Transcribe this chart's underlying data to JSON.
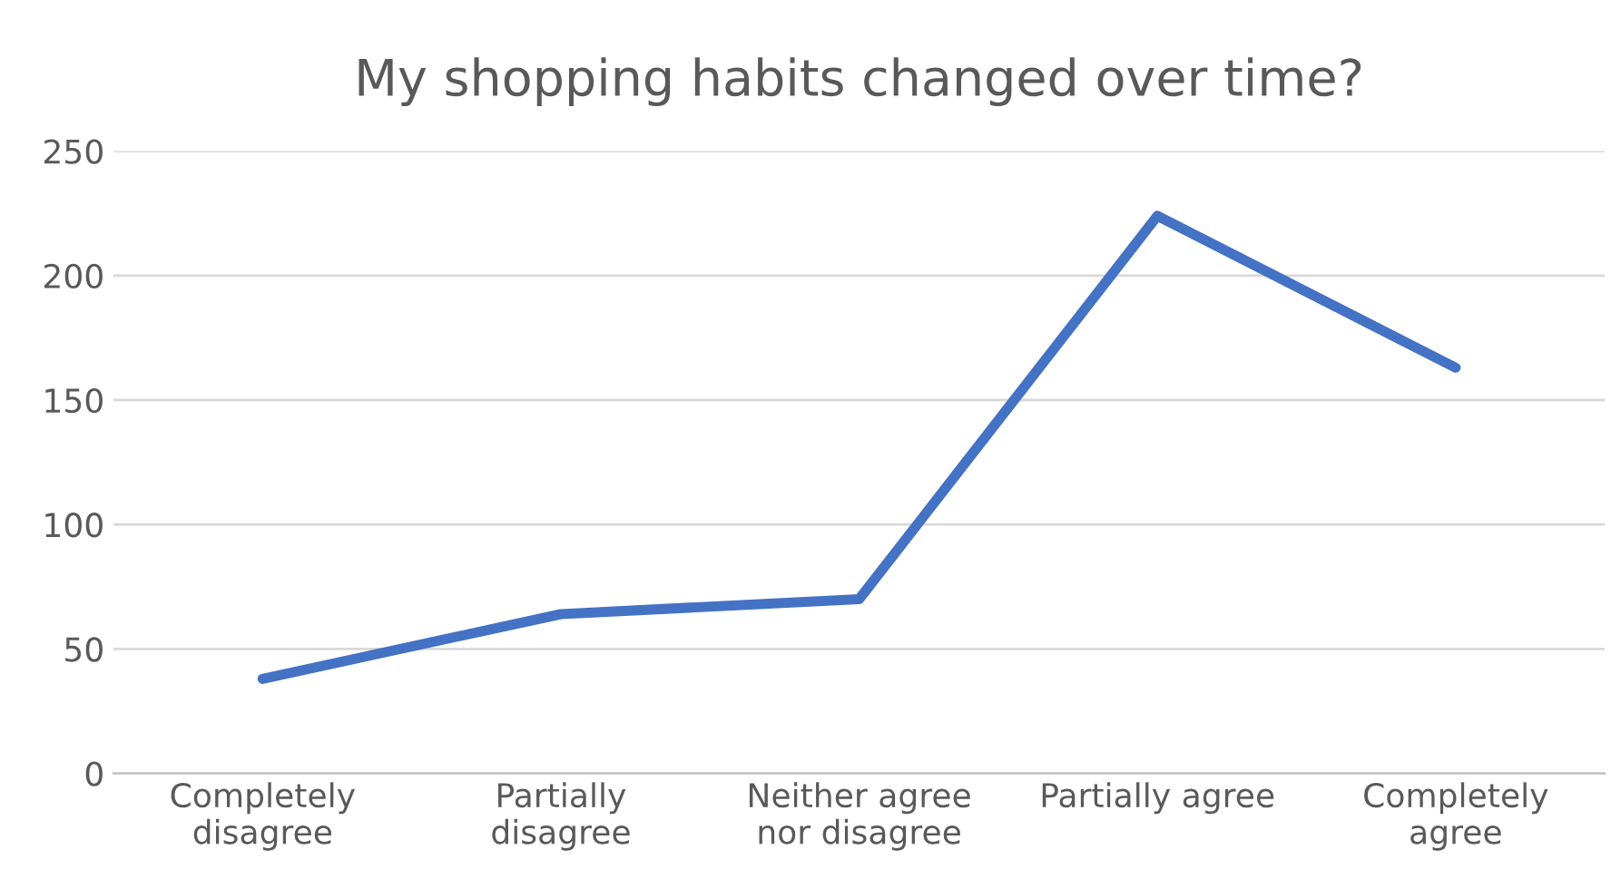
{
  "chart_data": {
    "type": "line",
    "title": "My shopping habits changed over time?",
    "categories": [
      "Completely\ndisagree",
      "Partially\ndisagree",
      "Neither agree\nnor disagree",
      "Partially agree",
      "Completely\nagree"
    ],
    "series": [
      {
        "color": "#4472c4",
        "values": [
          38,
          64,
          70,
          224,
          163
        ]
      }
    ],
    "ylim": [
      0,
      250
    ],
    "yticks": [
      0,
      50,
      100,
      150,
      200,
      250
    ],
    "grid": "y",
    "legend": false,
    "marker": "none",
    "line_style": "solid"
  }
}
